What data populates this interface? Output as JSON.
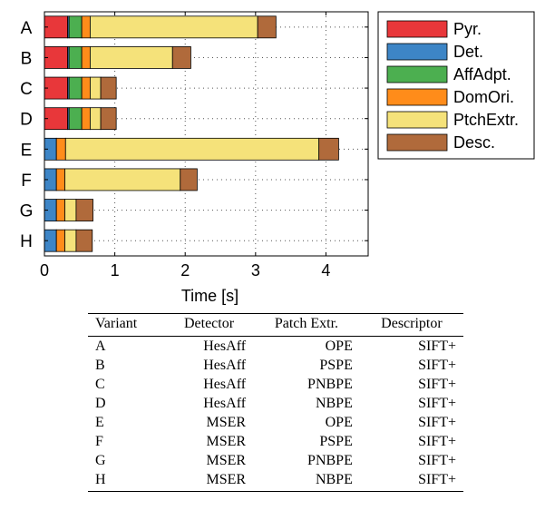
{
  "chart_data": {
    "type": "bar",
    "orientation": "horizontal",
    "stacked": true,
    "categories": [
      "A",
      "B",
      "C",
      "D",
      "E",
      "F",
      "G",
      "H"
    ],
    "series": [
      {
        "name": "Pyr.",
        "color": "#e8373a",
        "values": [
          0.33,
          0.33,
          0.33,
          0.33,
          0.0,
          0.0,
          0.0,
          0.0
        ]
      },
      {
        "name": "Det.",
        "color": "#3d85c6",
        "values": [
          0.02,
          0.02,
          0.02,
          0.02,
          0.17,
          0.17,
          0.17,
          0.17
        ]
      },
      {
        "name": "AffAdpt.",
        "color": "#4caf50",
        "values": [
          0.18,
          0.18,
          0.18,
          0.18,
          0.0,
          0.0,
          0.0,
          0.0
        ]
      },
      {
        "name": "DomOri.",
        "color": "#ff8c1a",
        "values": [
          0.12,
          0.12,
          0.12,
          0.12,
          0.13,
          0.12,
          0.12,
          0.12
        ]
      },
      {
        "name": "PtchExtr.",
        "color": "#f5e27a",
        "values": [
          2.38,
          1.17,
          0.15,
          0.15,
          3.6,
          1.64,
          0.16,
          0.16
        ]
      },
      {
        "name": "Desc.",
        "color": "#b06a3b",
        "values": [
          0.26,
          0.26,
          0.22,
          0.22,
          0.28,
          0.24,
          0.24,
          0.23
        ]
      }
    ],
    "xlabel": "Time [s]",
    "xlim": [
      0,
      4.6
    ],
    "xticks": [
      "0",
      "1",
      "2",
      "3",
      "4"
    ],
    "grid": "dotted-both",
    "legend": "right"
  },
  "table": {
    "headers": [
      "Variant",
      "Detector",
      "Patch Extr.",
      "Descriptor"
    ],
    "rows": [
      [
        "A",
        "HesAff",
        "OPE",
        "SIFT+"
      ],
      [
        "B",
        "HesAff",
        "PSPE",
        "SIFT+"
      ],
      [
        "C",
        "HesAff",
        "PNBPE",
        "SIFT+"
      ],
      [
        "D",
        "HesAff",
        "NBPE",
        "SIFT+"
      ],
      [
        "E",
        "MSER",
        "OPE",
        "SIFT+"
      ],
      [
        "F",
        "MSER",
        "PSPE",
        "SIFT+"
      ],
      [
        "G",
        "MSER",
        "PNBPE",
        "SIFT+"
      ],
      [
        "H",
        "MSER",
        "NBPE",
        "SIFT+"
      ]
    ]
  }
}
